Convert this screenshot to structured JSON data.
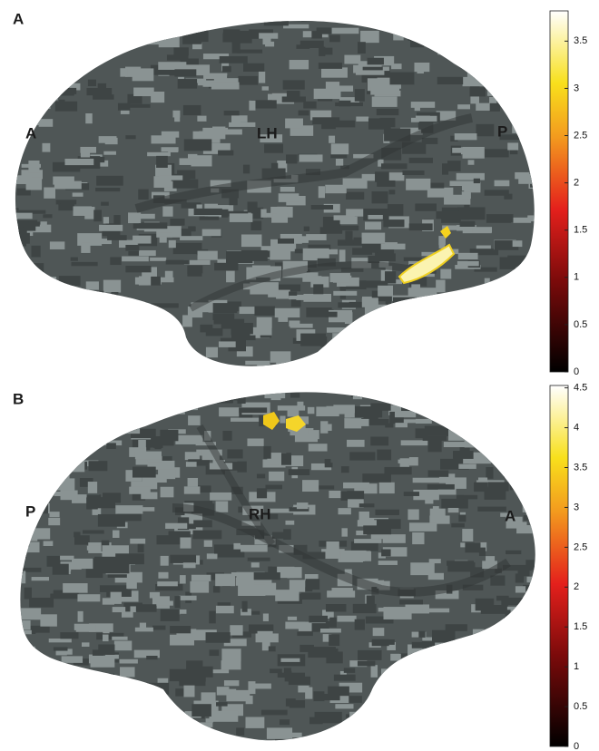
{
  "panels": [
    {
      "label": "A",
      "hemisphere": "LH",
      "left": "A",
      "right": "P",
      "colorbar": {
        "lim": [
          0,
          3.82
        ],
        "ticks": [
          0,
          0.5,
          1,
          1.5,
          2,
          2.5,
          3,
          3.5
        ]
      }
    },
    {
      "label": "B",
      "hemisphere": "RH",
      "left": "P",
      "right": "A",
      "colorbar": {
        "lim": [
          0,
          4.53
        ],
        "ticks": [
          0,
          0.5,
          1,
          1.5,
          2,
          2.5,
          3,
          3.5,
          4,
          4.5
        ]
      }
    }
  ]
}
